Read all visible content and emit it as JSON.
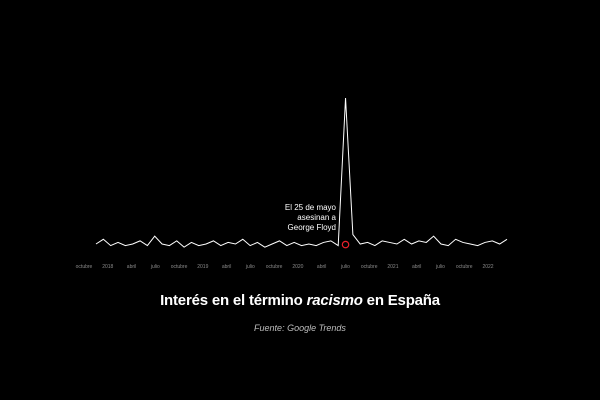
{
  "chart_data": {
    "type": "line",
    "x": [
      "2017-07",
      "2017-08",
      "2017-09",
      "2017-10",
      "2017-11",
      "2017-12",
      "2018-01",
      "2018-02",
      "2018-03",
      "2018-04",
      "2018-05",
      "2018-06",
      "2018-07",
      "2018-08",
      "2018-09",
      "2018-10",
      "2018-11",
      "2018-12",
      "2019-01",
      "2019-02",
      "2019-03",
      "2019-04",
      "2019-05",
      "2019-06",
      "2019-07",
      "2019-08",
      "2019-09",
      "2019-10",
      "2019-11",
      "2019-12",
      "2020-01",
      "2020-02",
      "2020-03",
      "2020-04",
      "2020-05",
      "2020-06",
      "2020-07",
      "2020-08",
      "2020-09",
      "2020-10",
      "2020-11",
      "2020-12",
      "2021-01",
      "2021-02",
      "2021-03",
      "2021-04",
      "2021-05",
      "2021-06",
      "2021-07",
      "2021-08",
      "2021-09",
      "2021-10",
      "2021-11",
      "2021-12",
      "2022-01",
      "2022-02",
      "2022-03"
    ],
    "values": [
      7,
      10,
      6,
      8,
      6,
      7,
      9,
      6,
      12,
      7,
      6,
      9,
      5,
      8,
      6,
      7,
      9,
      6,
      8,
      7,
      10,
      6,
      8,
      5,
      7,
      9,
      6,
      8,
      6,
      7,
      6,
      8,
      9,
      6,
      100,
      13,
      7,
      8,
      6,
      9,
      8,
      7,
      10,
      7,
      9,
      8,
      12,
      7,
      6,
      10,
      8,
      7,
      6,
      8,
      9,
      7,
      10
    ],
    "ylim": [
      0,
      100
    ],
    "tick_labels": [
      "octubre",
      "2018",
      "abril",
      "julio",
      "octubre",
      "2019",
      "abril",
      "julio",
      "octubre",
      "2020",
      "abril",
      "julio",
      "octubre",
      "2021",
      "abril",
      "julio",
      "octubre",
      "2022"
    ],
    "line_color": "#ffffff",
    "marker_color": "#e8202a",
    "marker_x": "2020-05",
    "annotation": [
      "El 25 de mayo",
      "asesinan a",
      "George Floyd"
    ]
  },
  "title_pre": "Interés en el término ",
  "title_em": "racismo",
  "title_post": " en España",
  "source": "Fuente: Google Trends"
}
